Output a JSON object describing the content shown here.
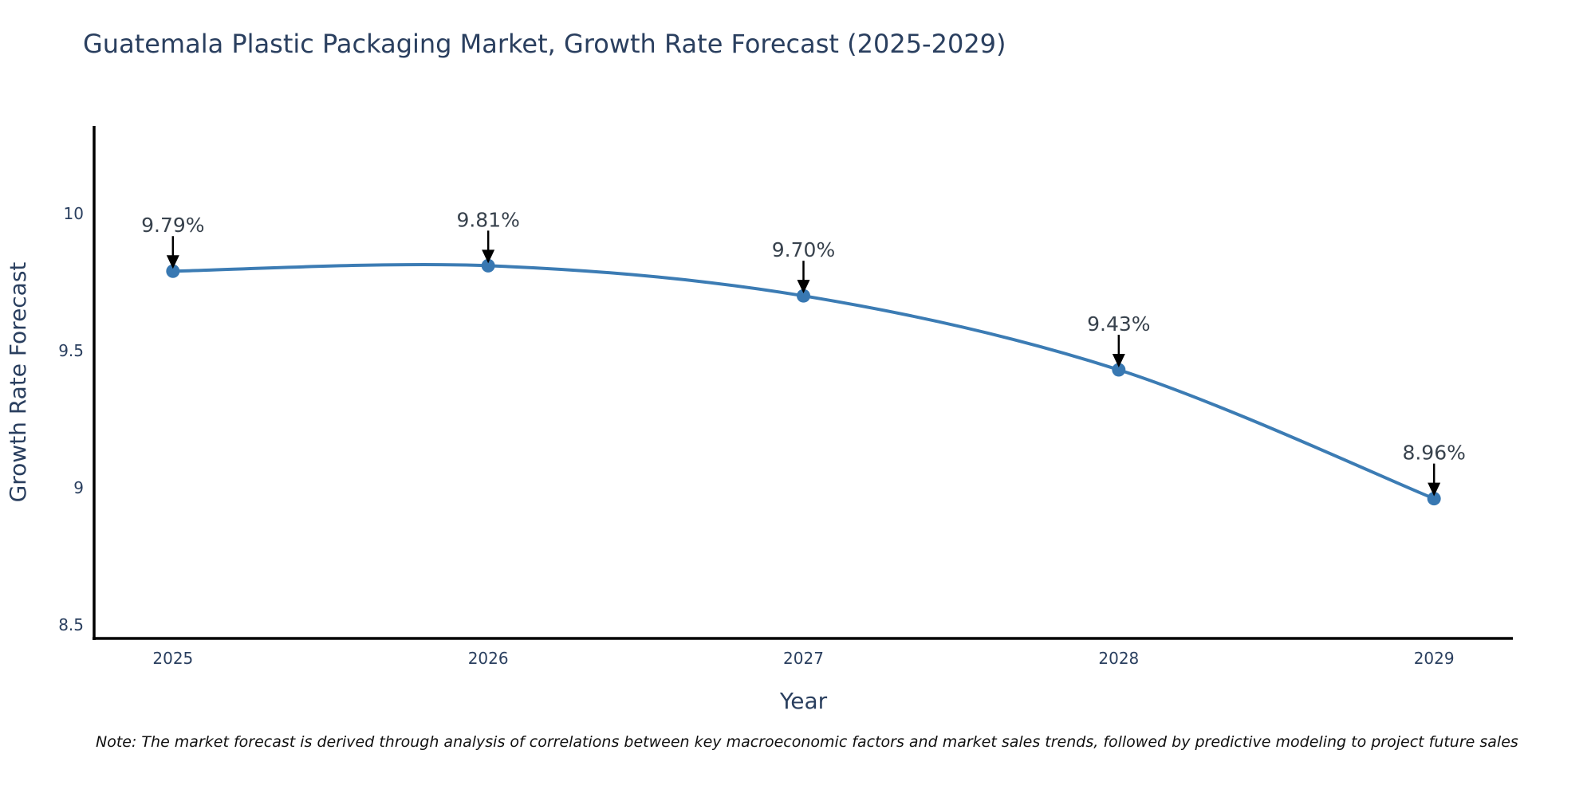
{
  "figure": {
    "title": "Guatemala Plastic Packaging Market, Growth Rate Forecast (2025-2029)",
    "note": "Note: The market forecast is derived through analysis of correlations between key macroeconomic factors and market sales trends, followed by predictive modeling to project future sales"
  },
  "chart_data": {
    "type": "line",
    "title": "Guatemala Plastic Packaging Market, Growth Rate Forecast (2025-2029)",
    "xlabel": "Year",
    "ylabel": "Growth Rate Forecast",
    "x": [
      2025,
      2026,
      2027,
      2028,
      2029
    ],
    "values": [
      9.79,
      9.81,
      9.7,
      9.43,
      8.96
    ],
    "point_labels": [
      "9.79%",
      "9.81%",
      "9.70%",
      "9.43%",
      "8.96%"
    ],
    "xticks": [
      2025,
      2026,
      2027,
      2028,
      2029
    ],
    "xtick_labels": [
      "2025",
      "2026",
      "2027",
      "2028",
      "2029"
    ],
    "yticks": [
      8.5,
      9,
      9.5,
      10
    ],
    "ytick_labels": [
      "8.5",
      "9",
      "9.5",
      "10"
    ],
    "xlim": [
      2024.75,
      2029.25
    ],
    "ylim": [
      8.45,
      10.32
    ],
    "grid": false,
    "legend": "none",
    "line_shape": "spline",
    "annotation_style": "value-label-with-down-arrow",
    "colors": {
      "line": "#3c7cb4",
      "marker": "#3878b2",
      "arrow": "#000000",
      "axis_line": "#000000",
      "text": "#2a3f5f",
      "note_text": "#111111",
      "background": "#ffffff"
    }
  }
}
